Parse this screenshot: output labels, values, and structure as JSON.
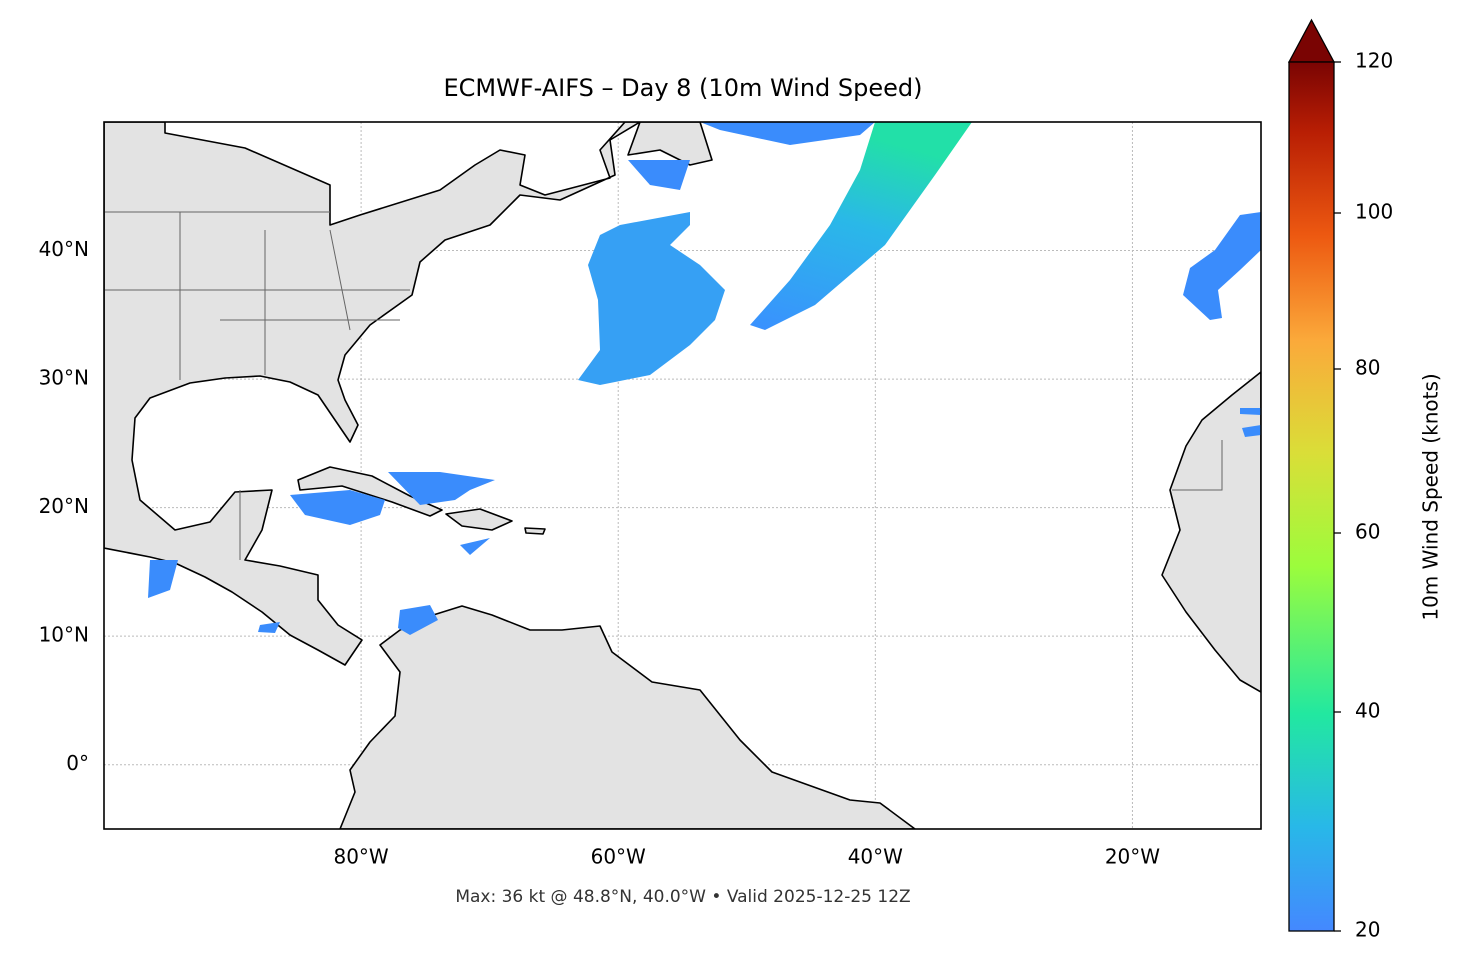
{
  "chart_data": {
    "type": "map",
    "title": "ECMWF-AIFS – Day 8 (10m Wind Speed)",
    "xlim": [
      -100,
      -10
    ],
    "ylim": [
      -5,
      50
    ],
    "xticks": [
      {
        "value": -80,
        "label": "80°W"
      },
      {
        "value": -60,
        "label": "60°W"
      },
      {
        "value": -40,
        "label": "40°W"
      },
      {
        "value": -20,
        "label": "20°W"
      }
    ],
    "yticks": [
      {
        "value": 0,
        "label": "0°"
      },
      {
        "value": 10,
        "label": "10°N"
      },
      {
        "value": 20,
        "label": "20°N"
      },
      {
        "value": 30,
        "label": "30°N"
      },
      {
        "value": 40,
        "label": "40°N"
      }
    ],
    "grid": true,
    "colorbar": {
      "label": "10m Wind Speed (knots)",
      "lim": [
        20,
        120
      ],
      "ticks": [
        20,
        40,
        60,
        80,
        100,
        120
      ]
    },
    "footnote": "Max: 36 kt @ 48.8°N, 40.0°W • Valid 2025-12-25 12Z"
  }
}
